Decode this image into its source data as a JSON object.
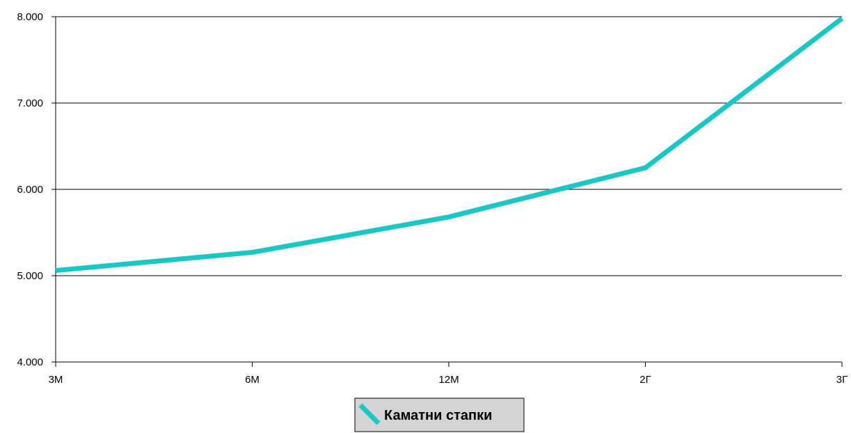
{
  "chart_data": {
    "type": "line",
    "categories": [
      "3М",
      "6М",
      "12М",
      "2Г",
      "3Г"
    ],
    "series": [
      {
        "name": "Каматни стапки",
        "values": [
          5.06,
          5.27,
          5.68,
          6.25,
          7.98
        ],
        "color": "#19c8c4"
      }
    ],
    "ylim": [
      4,
      8
    ],
    "yticks": [
      4,
      5,
      6,
      7,
      8
    ],
    "ytick_labels": [
      "4.000",
      "5.000",
      "6.000",
      "7.000",
      "8.000"
    ],
    "grid": true,
    "legend_position": "bottom-center"
  }
}
